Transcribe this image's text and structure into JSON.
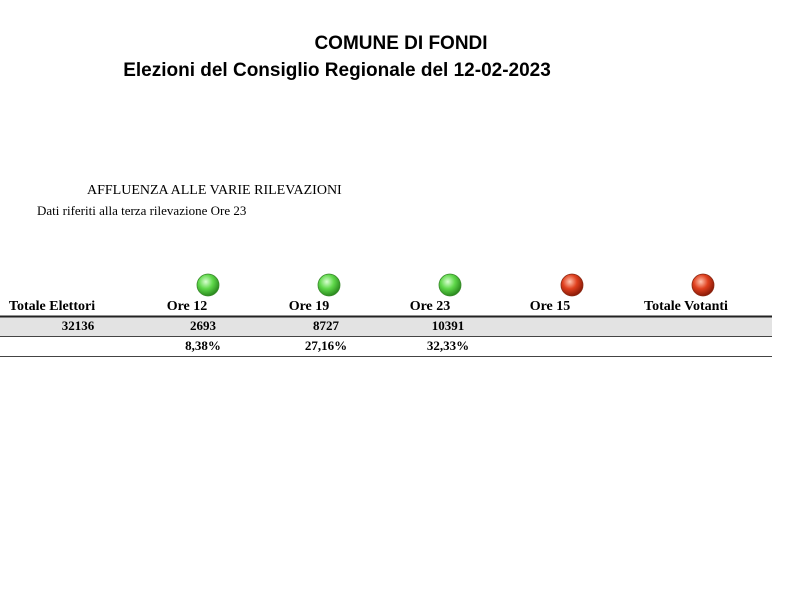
{
  "header": {
    "title": "COMUNE DI FONDI",
    "subtitle": "Elezioni del Consiglio Regionale del 12-02-2023"
  },
  "section": {
    "title": "AFFLUENZA ALLE VARIE RILEVAZIONI",
    "note": "Dati riferiti alla terza rilevazione Ore 23"
  },
  "table": {
    "columns": [
      "Totale Elettori",
      "Ore 12",
      "Ore 19",
      "Ore 23",
      "Ore 15",
      "Totale Votanti"
    ],
    "indicators": [
      null,
      "green",
      "green",
      "green",
      "red",
      "red"
    ],
    "rows": [
      [
        "32136",
        "2693",
        "8727",
        "10391",
        null,
        null
      ],
      [
        null,
        "8,38%",
        "27,16%",
        "32,33%",
        null,
        null
      ]
    ]
  }
}
